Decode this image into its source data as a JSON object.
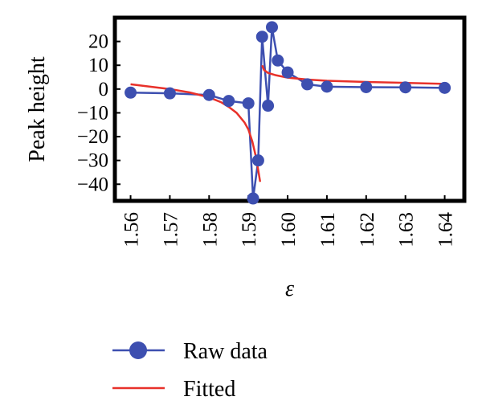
{
  "chart_data": {
    "type": "line",
    "xlabel": "ε",
    "ylabel": "Peak height",
    "xlim": [
      1.556,
      1.645
    ],
    "ylim": [
      -47,
      30
    ],
    "x_ticks": [
      "1.56",
      "1.57",
      "1.58",
      "1.59",
      "1.60",
      "1.61",
      "1.62",
      "1.63",
      "1.64"
    ],
    "y_ticks": [
      "20",
      "10",
      "0",
      "−10",
      "−20",
      "−30",
      "−40"
    ],
    "grid": false,
    "legend_position": "bottom",
    "series": [
      {
        "name": "Raw data",
        "color": "#3d4fb0",
        "marker": "circle",
        "x": [
          1.56,
          1.57,
          1.58,
          1.585,
          1.59,
          1.5912,
          1.5925,
          1.5935,
          1.595,
          1.596,
          1.5975,
          1.6,
          1.605,
          1.61,
          1.62,
          1.63,
          1.64
        ],
        "y": [
          -1.5,
          -1.8,
          -2.5,
          -5.0,
          -6.0,
          -46.0,
          -30.0,
          22.0,
          -7.0,
          26.0,
          12.0,
          7.0,
          2.0,
          1.0,
          0.8,
          0.7,
          0.5
        ]
      },
      {
        "name": "Fitted",
        "color": "#e8312a",
        "marker": "none",
        "x": [
          1.56,
          1.565,
          1.57,
          1.575,
          1.58,
          1.583,
          1.585,
          1.587,
          1.589,
          1.59,
          1.591,
          1.592,
          1.593,
          1.5935,
          1.594,
          1.595,
          1.597,
          1.6,
          1.605,
          1.61,
          1.62,
          1.63,
          1.64
        ],
        "y": [
          2.0,
          1.0,
          0.0,
          -1.4,
          -3.5,
          -5.5,
          -7.5,
          -10.0,
          -14.0,
          -17.0,
          -22.0,
          -29.0,
          -39.0,
          10.0,
          8.0,
          6.8,
          5.8,
          4.8,
          4.0,
          3.5,
          3.0,
          2.6,
          2.2
        ]
      }
    ]
  }
}
